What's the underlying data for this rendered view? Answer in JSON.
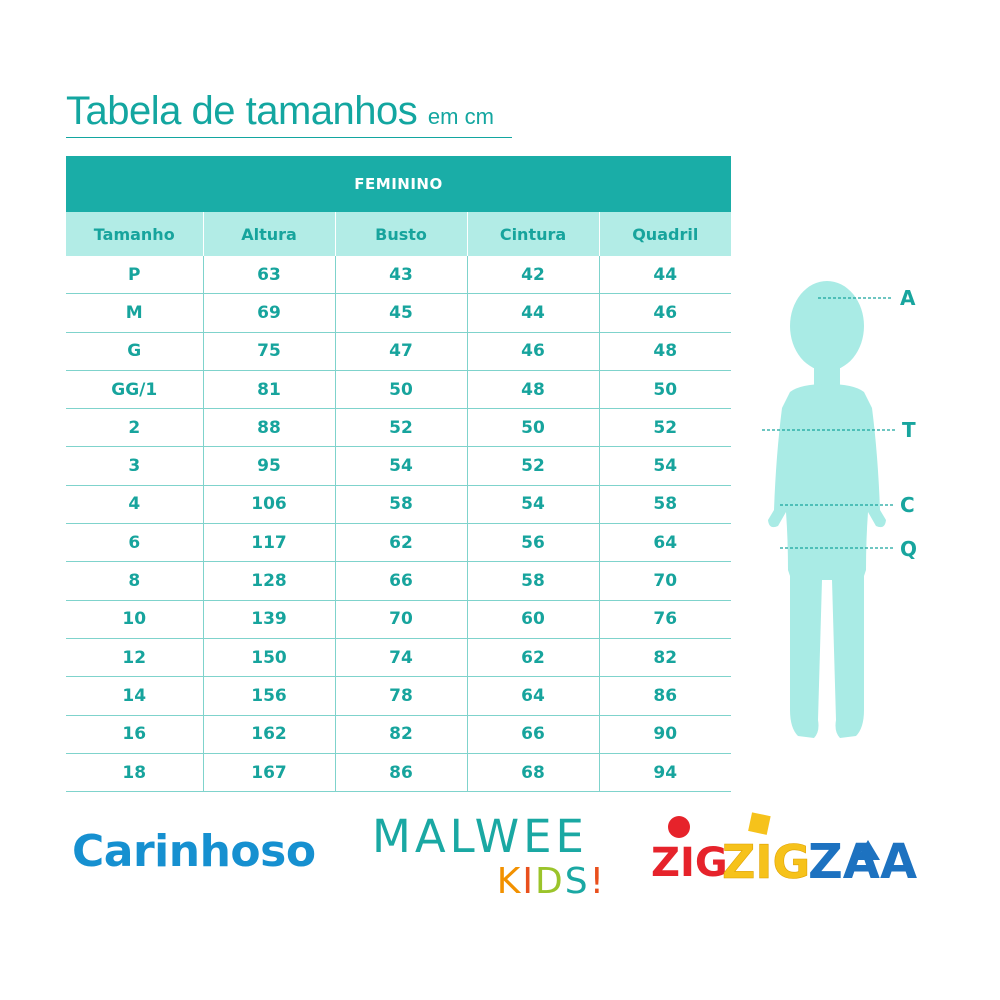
{
  "title": {
    "main": "Tabela de tamanhos",
    "unit": "em cm"
  },
  "table": {
    "band_label": "FEMININO",
    "headers": [
      "Tamanho",
      "Altura",
      "Busto",
      "Cintura",
      "Quadril"
    ],
    "rows": [
      [
        "P",
        "63",
        "43",
        "42",
        "44"
      ],
      [
        "M",
        "69",
        "45",
        "44",
        "46"
      ],
      [
        "G",
        "75",
        "47",
        "46",
        "48"
      ],
      [
        "GG/1",
        "81",
        "50",
        "48",
        "50"
      ],
      [
        "2",
        "88",
        "52",
        "50",
        "52"
      ],
      [
        "3",
        "95",
        "54",
        "52",
        "54"
      ],
      [
        "4",
        "106",
        "58",
        "54",
        "58"
      ],
      [
        "6",
        "117",
        "62",
        "56",
        "64"
      ],
      [
        "8",
        "128",
        "66",
        "58",
        "70"
      ],
      [
        "10",
        "139",
        "70",
        "60",
        "76"
      ],
      [
        "12",
        "150",
        "74",
        "62",
        "82"
      ],
      [
        "14",
        "156",
        "78",
        "64",
        "86"
      ],
      [
        "16",
        "162",
        "82",
        "66",
        "90"
      ],
      [
        "18",
        "167",
        "86",
        "68",
        "94"
      ]
    ]
  },
  "figure": {
    "icon": "child-silhouette-icon",
    "markers": {
      "a": "A",
      "t": "T",
      "c": "C",
      "q": "Q"
    }
  },
  "brands": {
    "carinhoso": "Carinhoso",
    "malwee": "MALWEE",
    "kids": [
      "K",
      "I",
      "D",
      "S",
      "!"
    ],
    "zig1": "ZIG",
    "zig2": "ZIG",
    "zaa": "ZAA"
  },
  "colors": {
    "accent": "#13a6a0",
    "header_band": "#1aada7",
    "header_row": "#b2ece6",
    "figure": "#a9ebe5",
    "carinhoso": "#1690d0"
  }
}
